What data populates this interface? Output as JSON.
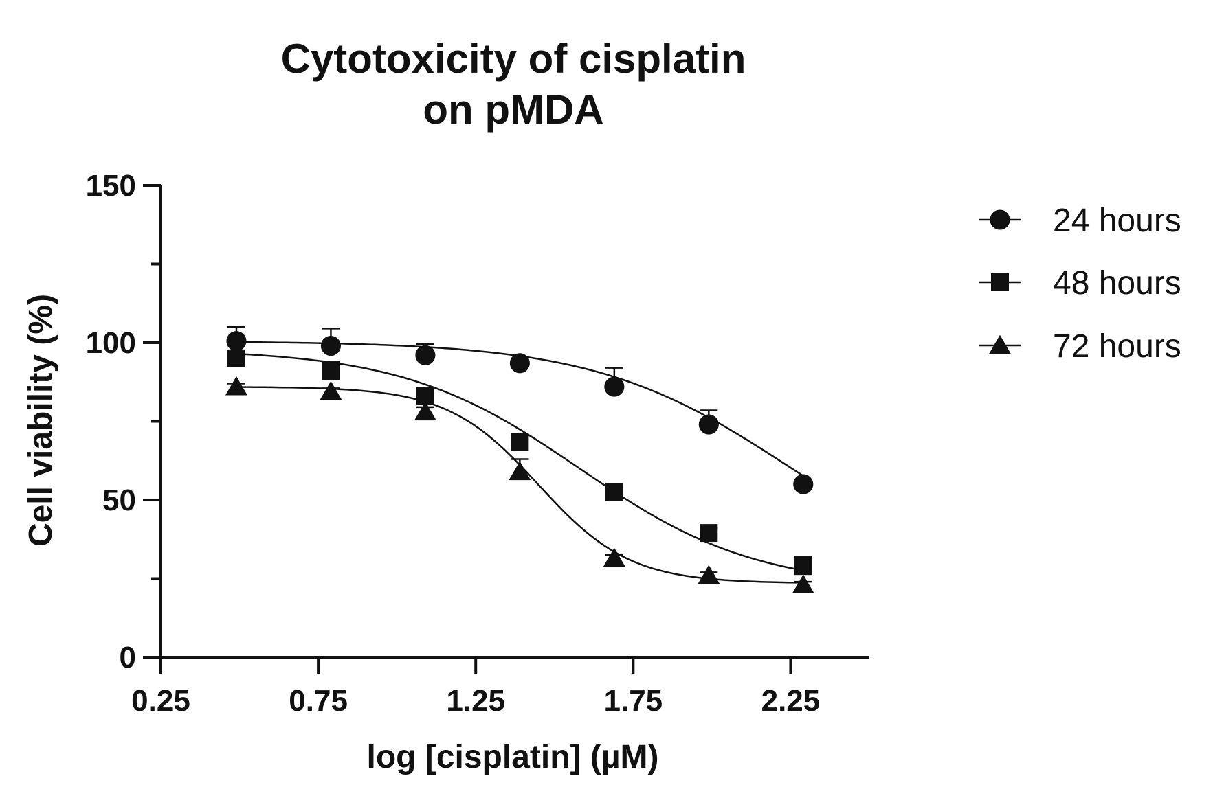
{
  "chart_data": {
    "type": "scatter",
    "title_lines": [
      "Cytotoxicity of cisplatin",
      "on pMDA"
    ],
    "xlabel": "log [cisplatin] (µM)",
    "ylabel": "Cell viability (%)",
    "xlim": [
      0.25,
      2.5
    ],
    "ylim": [
      0,
      150
    ],
    "x_ticks": [
      0.25,
      0.75,
      1.25,
      1.75,
      2.25
    ],
    "x_tick_labels": [
      "0.25",
      "0.75",
      "1.25",
      "1.75",
      "2.25"
    ],
    "y_ticks": [
      0,
      50,
      100,
      150
    ],
    "y_tick_labels": [
      "0",
      "50",
      "100",
      "150"
    ],
    "y_minor_ticks": [
      25,
      75,
      125
    ],
    "grid": false,
    "legend_position": "right",
    "fit_curves": true,
    "series": [
      {
        "name": "24 hours",
        "marker": "circle",
        "x": [
          0.49,
          0.79,
          1.09,
          1.39,
          1.69,
          1.99,
          2.29
        ],
        "y": [
          100.5,
          99,
          96,
          93.5,
          86,
          74,
          55
        ],
        "err": [
          4.5,
          5.5,
          3.5,
          1.5,
          6,
          4.5,
          1.5
        ],
        "fit": {
          "top": 100.5,
          "bottom": 20,
          "logIC50": 2.25,
          "hill": 1.4
        }
      },
      {
        "name": "48 hours",
        "marker": "square",
        "x": [
          0.49,
          0.79,
          1.09,
          1.39,
          1.69,
          1.99,
          2.29
        ],
        "y": [
          95,
          91,
          83,
          68.5,
          52.5,
          39.5,
          29
        ],
        "err": [
          1.5,
          3,
          2.5,
          2,
          1.5,
          1.5,
          3
        ],
        "fit": {
          "top": 98,
          "bottom": 22,
          "logIC50": 1.58,
          "hill": 1.55
        }
      },
      {
        "name": "72 hours",
        "marker": "triangle",
        "x": [
          0.49,
          0.79,
          1.09,
          1.39,
          1.69,
          1.99,
          2.29
        ],
        "y": [
          86,
          84.5,
          78,
          59,
          31.5,
          26,
          23
        ],
        "err": [
          1,
          1,
          1.5,
          4,
          1,
          1,
          1
        ],
        "fit": {
          "top": 86,
          "bottom": 23.5,
          "logIC50": 1.45,
          "hill": 3.0
        }
      }
    ]
  }
}
